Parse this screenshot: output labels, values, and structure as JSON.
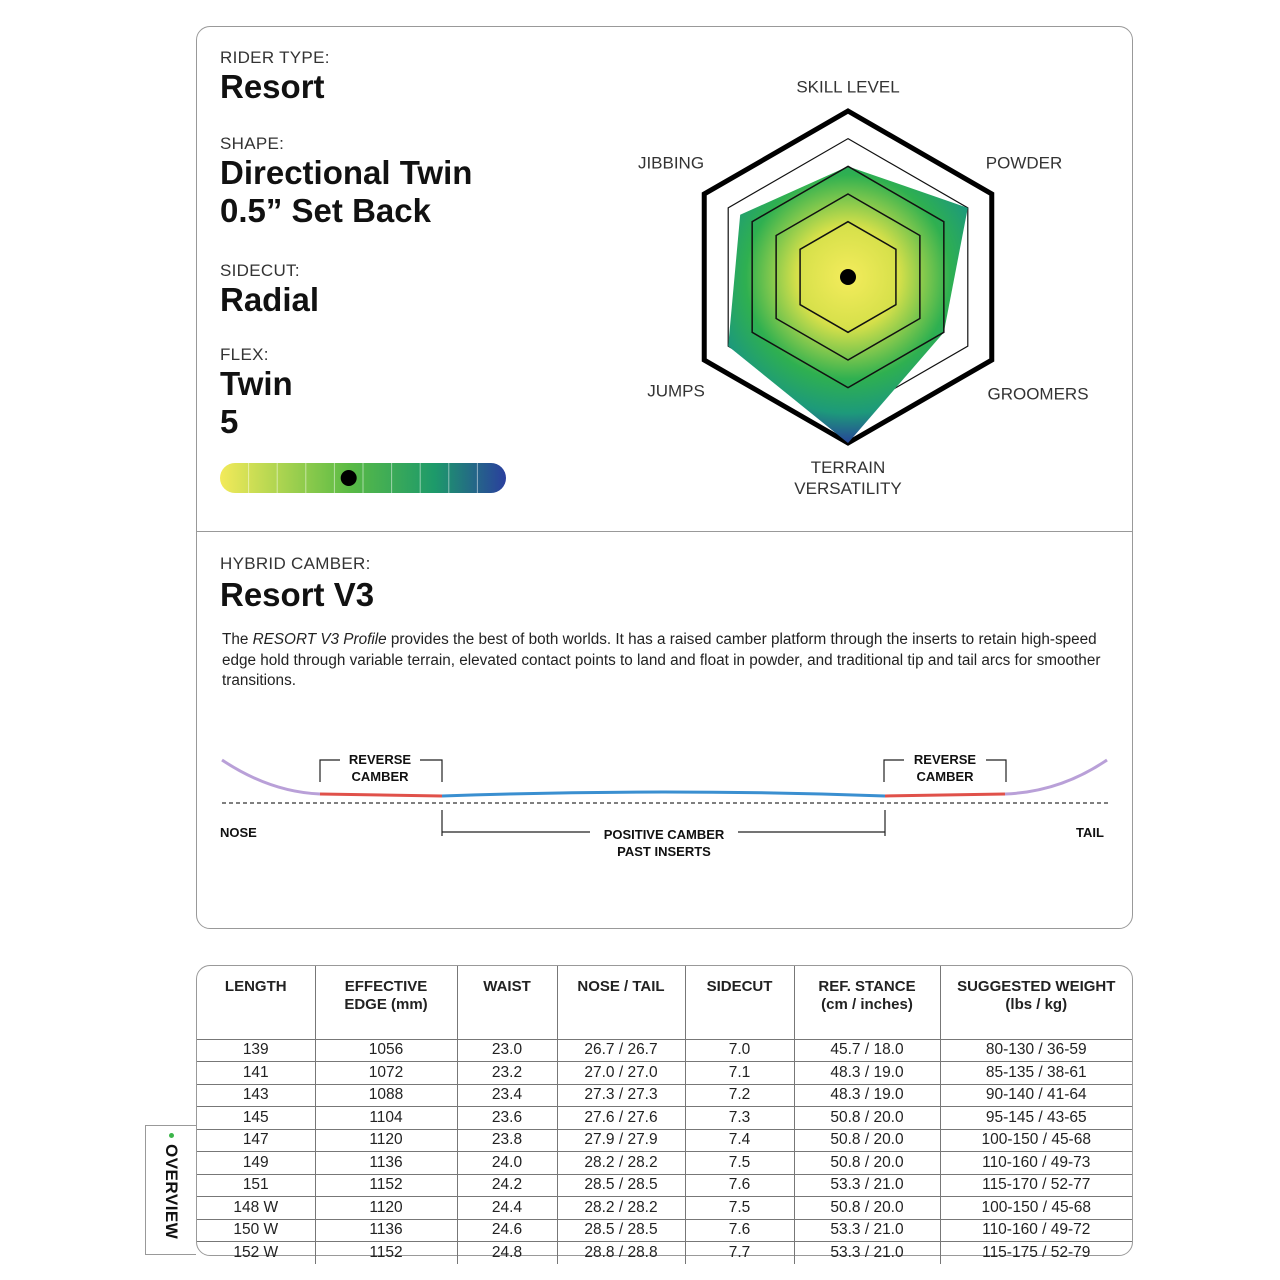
{
  "specs": [
    {
      "label": "RIDER TYPE:",
      "lines": [
        "Resort"
      ]
    },
    {
      "label": "SHAPE:",
      "lines": [
        "Directional Twin",
        "0.5” Set Back"
      ]
    },
    {
      "label": "SIDECUT:",
      "lines": [
        "Radial"
      ]
    },
    {
      "label": "FLEX:",
      "lines": [
        "Twin",
        5
      ]
    }
  ],
  "radar": {
    "axes": [
      "SKILL LEVEL",
      "POWDER",
      "GROOMERS",
      "TERRAIN VERSATILITY",
      "JUMPS",
      "JIBBING"
    ],
    "values": [
      4,
      5,
      4,
      6,
      5,
      4.5
    ],
    "rlim": [
      0,
      6
    ],
    "rticks": [
      2,
      3,
      4,
      5,
      6
    ]
  },
  "camber": {
    "label": "HYBRID CAMBER:",
    "value": "Resort V3",
    "description": {
      "before": "The ",
      "emphasis": "RESORT V3 Profile",
      "after": " provides the best of both worlds. It has a raised camber platform through the inserts to retain high-speed edge hold through variable terrain, elevated contact points to land and float in powder, and traditional tip and tail arcs for smoother transitions."
    },
    "diagram": {
      "reverse_left": [
        "REVERSE",
        "CAMBER"
      ],
      "reverse_right": [
        "REVERSE",
        "CAMBER"
      ],
      "nose": "NOSE",
      "tail": "TAIL",
      "positive": [
        "POSITIVE CAMBER",
        "PAST INSERTS"
      ]
    }
  },
  "table": {
    "headers": [
      [
        "LENGTH"
      ],
      [
        "EFFECTIVE",
        "EDGE (mm)"
      ],
      [
        "WAIST"
      ],
      [
        "NOSE / TAIL"
      ],
      [
        "SIDECUT"
      ],
      [
        "REF. STANCE",
        "(cm / inches)"
      ],
      [
        "SUGGESTED WEIGHT",
        "(lbs / kg)"
      ]
    ],
    "rows": [
      [
        "139",
        "1056",
        "23.0",
        "26.7 / 26.7",
        "7.0",
        "45.7 / 18.0",
        "80-130 / 36-59"
      ],
      [
        "141",
        "1072",
        "23.2",
        "27.0 / 27.0",
        "7.1",
        "48.3 / 19.0",
        "85-135 / 38-61"
      ],
      [
        "143",
        "1088",
        "23.4",
        "27.3 / 27.3",
        "7.2",
        "48.3 / 19.0",
        "90-140 / 41-64"
      ],
      [
        "145",
        "1104",
        "23.6",
        "27.6 / 27.6",
        "7.3",
        "50.8 / 20.0",
        "95-145 / 43-65"
      ],
      [
        "147",
        "1120",
        "23.8",
        "27.9 / 27.9",
        "7.4",
        "50.8 / 20.0",
        "100-150 / 45-68"
      ],
      [
        "149",
        "1136",
        "24.0",
        "28.2 / 28.2",
        "7.5",
        "50.8 / 20.0",
        "110-160 / 49-73"
      ],
      [
        "151",
        "1152",
        "24.2",
        "28.5 / 28.5",
        "7.6",
        "53.3 / 21.0",
        "115-170 / 52-77"
      ],
      [
        "148 W",
        "1120",
        "24.4",
        "28.2 / 28.2",
        "7.5",
        "50.8 / 20.0",
        "100-150 / 45-68"
      ],
      [
        "150 W",
        "1136",
        "24.6",
        "28.5 / 28.5",
        "7.6",
        "53.3 / 21.0",
        "110-160 / 49-72"
      ],
      [
        "152 W",
        "1152",
        "24.8",
        "28.8 / 28.8",
        "7.7",
        "53.3 / 21.0",
        "115-175 / 52-79"
      ]
    ]
  },
  "tab": "OVERVIEW"
}
